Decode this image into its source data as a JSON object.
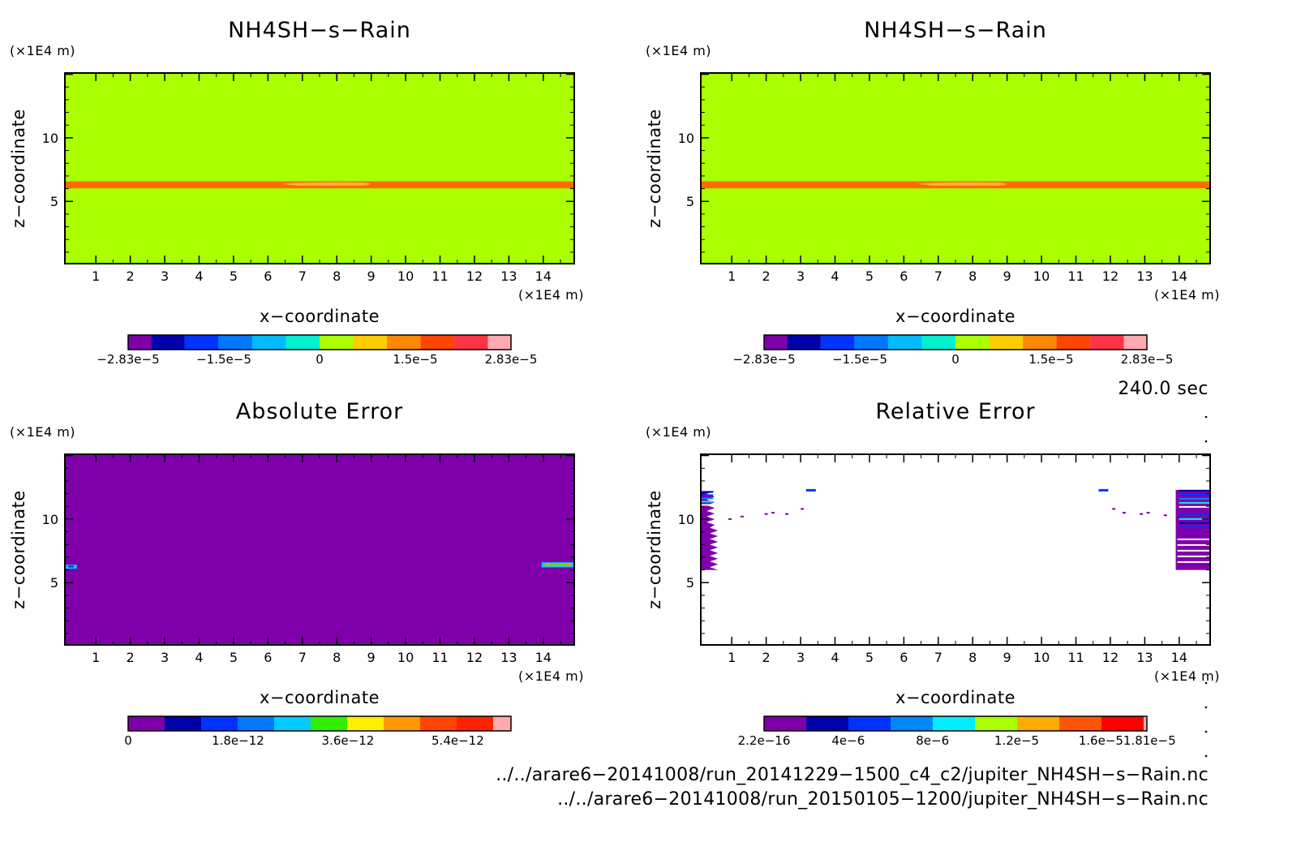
{
  "colors": {
    "field": "#aaff00",
    "band": "#ff6a00",
    "band_light": "#ffb040",
    "abs_background": "#7f00aa",
    "palette_field": [
      "#7f00aa",
      "#0000aa",
      "#0033ff",
      "#0077ff",
      "#00bbff",
      "#00f0d0",
      "#aaff00",
      "#ffcc00",
      "#ff8800",
      "#ff4400",
      "#ff3344",
      "#ffaab0"
    ],
    "palette_abs": [
      "#7f00aa",
      "#0000aa",
      "#0033ff",
      "#0077ff",
      "#00ccff",
      "#33ee00",
      "#ffee00",
      "#ff9900",
      "#ff4400",
      "#ff2200",
      "#ffaaaa"
    ],
    "palette_rel": [
      "#7f00aa",
      "#0000aa",
      "#0033ff",
      "#0088ff",
      "#00eeff",
      "#aaff00",
      "#ffaa00",
      "#ff5500",
      "#ff0000",
      "#ffaaaa"
    ]
  },
  "labels": {
    "xunit": "(×1E4 m)",
    "yunit": "(×1E4 m)",
    "xlabel": "x−coordinate",
    "ylabel": "z−coordinate",
    "time": "240.0 sec",
    "file1": "../../arare6−20141008/run_20141229−1500_c4_c2/jupiter_NH4SH−s−Rain.nc",
    "file2": "../../arare6−20141008/run_20150105−1200/jupiter_NH4SH−s−Rain.nc"
  },
  "chart_data": [
    {
      "type": "heatmap",
      "title": "NH4SH−s−Rain",
      "xlabel": "x−coordinate",
      "ylabel": "z−coordinate",
      "xlim": [
        0.1,
        14.9
      ],
      "ylim": [
        0.1,
        15.1
      ],
      "xticks": [
        "1",
        "2",
        "3",
        "4",
        "5",
        "6",
        "7",
        "8",
        "9",
        "10",
        "11",
        "12",
        "13",
        "14"
      ],
      "yticks": [
        "5",
        "10"
      ],
      "field": {
        "background_value": 0,
        "band_z": 6.3,
        "band_thickness": 0.25,
        "bulge_center_x": 7.8,
        "bulge_halfwidth_x": 4.0
      },
      "colorbar": {
        "labels": [
          "−2.83e−5",
          "−1.5e−5",
          "0",
          "1.5e−5",
          "2.83e−5"
        ],
        "range": [
          -2.83e-05,
          2.83e-05
        ]
      }
    },
    {
      "type": "heatmap",
      "title": "NH4SH−s−Rain",
      "xlabel": "x−coordinate",
      "ylabel": "z−coordinate",
      "xlim": [
        0.1,
        14.9
      ],
      "ylim": [
        0.1,
        15.1
      ],
      "xticks": [
        "1",
        "2",
        "3",
        "4",
        "5",
        "6",
        "7",
        "8",
        "9",
        "10",
        "11",
        "12",
        "13",
        "14"
      ],
      "yticks": [
        "5",
        "10"
      ],
      "field": {
        "background_value": 0,
        "band_z": 6.3,
        "band_thickness": 0.25,
        "bulge_center_x": 7.8,
        "bulge_halfwidth_x": 4.0
      },
      "colorbar": {
        "labels": [
          "−2.83e−5",
          "−1.5e−5",
          "0",
          "1.5e−5",
          "2.83e−5"
        ],
        "range": [
          -2.83e-05,
          2.83e-05
        ]
      }
    },
    {
      "type": "heatmap",
      "title": "Absolute Error",
      "xlabel": "x−coordinate",
      "ylabel": "z−coordinate",
      "xlim": [
        0.1,
        14.9
      ],
      "ylim": [
        0.1,
        15.1
      ],
      "xticks": [
        "1",
        "2",
        "3",
        "4",
        "5",
        "6",
        "7",
        "8",
        "9",
        "10",
        "11",
        "12",
        "13",
        "14"
      ],
      "yticks": [
        "5",
        "10"
      ],
      "blips": [
        {
          "x": [
            0.1,
            0.45
          ],
          "z": [
            6.1,
            6.4
          ]
        },
        {
          "x": [
            13.95,
            14.9
          ],
          "z": [
            6.2,
            6.6
          ]
        }
      ],
      "colorbar": {
        "labels": [
          "0",
          "1.8e−12",
          "3.6e−12",
          "5.4e−12"
        ],
        "range": [
          0,
          7.2e-12
        ]
      }
    },
    {
      "type": "heatmap",
      "title": "Relative Error",
      "xlabel": "x−coordinate",
      "ylabel": "z−coordinate",
      "xlim": [
        0.1,
        14.9
      ],
      "ylim": [
        0.1,
        15.1
      ],
      "xticks": [
        "1",
        "2",
        "3",
        "4",
        "5",
        "6",
        "7",
        "8",
        "9",
        "10",
        "11",
        "12",
        "13",
        "14"
      ],
      "yticks": [
        "5",
        "10"
      ],
      "regions": [
        {
          "x": [
            0.1,
            0.6
          ],
          "z": [
            6.0,
            12.2
          ]
        },
        {
          "x": [
            13.9,
            14.9
          ],
          "z": [
            6.0,
            12.3
          ]
        }
      ],
      "specks": [
        {
          "x": 3.3,
          "z": 12.3
        },
        {
          "x": 11.8,
          "z": 12.3
        },
        {
          "x": 0.95,
          "z": 10.0
        },
        {
          "x": 1.3,
          "z": 10.2
        },
        {
          "x": 2.0,
          "z": 10.4
        },
        {
          "x": 2.2,
          "z": 10.5
        },
        {
          "x": 2.6,
          "z": 10.4
        },
        {
          "x": 3.05,
          "z": 10.8
        },
        {
          "x": 12.1,
          "z": 10.8
        },
        {
          "x": 12.4,
          "z": 10.5
        },
        {
          "x": 12.9,
          "z": 10.4
        },
        {
          "x": 13.1,
          "z": 10.5
        },
        {
          "x": 13.6,
          "z": 10.3
        }
      ],
      "colorbar": {
        "labels": [
          "2.2e−16",
          "4e−6",
          "8e−6",
          "1.2e−5",
          "1.6e−5",
          "1.81e−5"
        ],
        "range": [
          2.2e-16,
          1.81e-05
        ]
      }
    }
  ]
}
